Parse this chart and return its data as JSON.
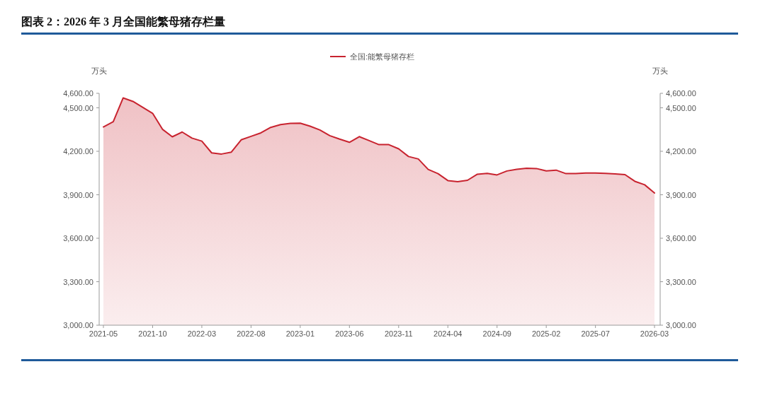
{
  "chart_data": {
    "type": "area",
    "title": "图表 2：2026 年 3 月全国能繁母猪存栏量",
    "ylabel": "万头",
    "y2label": "万头",
    "categories": [
      "2021-05",
      null,
      null,
      null,
      null,
      "2021-10",
      null,
      null,
      null,
      null,
      "2022-03",
      null,
      null,
      null,
      null,
      "2022-08",
      null,
      null,
      null,
      null,
      "2023-01",
      null,
      null,
      null,
      null,
      "2023-06",
      null,
      null,
      null,
      null,
      "2023-11",
      null,
      null,
      null,
      null,
      "2024-04",
      null,
      null,
      null,
      null,
      "2024-09",
      null,
      null,
      null,
      null,
      "2025-02",
      null,
      null,
      null,
      null,
      "2025-07",
      null,
      null,
      null,
      null,
      null,
      "2026-03"
    ],
    "series": [
      {
        "name": "全国:能繁母猪存栏",
        "color": "#c8232f",
        "values": [
          4368,
          4404,
          4568,
          4544,
          4503,
          4462,
          4352,
          4300,
          4333,
          4291,
          4270,
          4189,
          4181,
          4194,
          4279,
          4303,
          4327,
          4365,
          4384,
          4393,
          4394,
          4373,
          4347,
          4308,
          4284,
          4262,
          4301,
          4274,
          4246,
          4246,
          4217,
          4164,
          4147,
          4075,
          4046,
          3998,
          3990,
          4000,
          4042,
          4047,
          4037,
          4064,
          4076,
          4083,
          4081,
          4065,
          4070,
          4046,
          4046,
          4050,
          4050,
          4048,
          4044,
          4039,
          3993,
          3969,
          3912
        ]
      }
    ],
    "ylim": [
      3000,
      4600
    ],
    "yticks": [
      {
        "value": 3000,
        "label": "3,000.00"
      },
      {
        "value": 3300,
        "label": "3,300.00"
      },
      {
        "value": 3600,
        "label": "3,600.00"
      },
      {
        "value": 3900,
        "label": "3,900.00"
      },
      {
        "value": 4200,
        "label": "4,200.00"
      },
      {
        "value": 4500,
        "label": "4,500.00"
      },
      {
        "value": 4600,
        "label": "4,600.00"
      }
    ],
    "y2lim": [
      3000,
      4600
    ],
    "y2ticks": [
      {
        "value": 3000,
        "label": "3,000.00"
      },
      {
        "value": 3300,
        "label": "3,300.00"
      },
      {
        "value": 3600,
        "label": "3,600.00"
      },
      {
        "value": 3900,
        "label": "3,900.00"
      },
      {
        "value": 4200,
        "label": "4,200.00"
      },
      {
        "value": 4500,
        "label": "4,500.00"
      },
      {
        "value": 4600,
        "label": "4,600.00"
      }
    ],
    "grid": false,
    "legend": "top",
    "marker": "none",
    "line_style": "solid"
  }
}
